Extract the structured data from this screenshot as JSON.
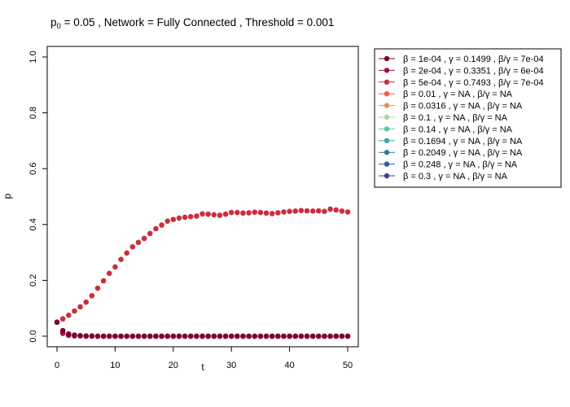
{
  "chart_data": {
    "type": "scatter",
    "title_parts": {
      "p_label": "p",
      "p_sub": "0",
      "p_value": " = 0.05 ,  Network = Fully Connected ,  Threshold = 0.001"
    },
    "xlabel": "t",
    "ylabel": "p",
    "xlim": [
      0,
      50
    ],
    "ylim": [
      0,
      1
    ],
    "x_ticks": [
      0,
      10,
      20,
      30,
      40,
      50
    ],
    "y_ticks": [
      0.0,
      0.2,
      0.4,
      0.6,
      0.8,
      1.0
    ],
    "x_tick_labels": [
      "0",
      "10",
      "20",
      "30",
      "40",
      "50"
    ],
    "y_tick_labels": [
      "0.0",
      "0.2",
      "0.4",
      "0.6",
      "0.8",
      "1.0"
    ],
    "grid": false,
    "legend_position": "outside-right",
    "series": [
      {
        "name": "β = 1e-04 ,  γ = 0.1499 ,  β/γ = 7e-04",
        "color": "#800033",
        "x": [
          0,
          1,
          2,
          3,
          4,
          5,
          6,
          7,
          8,
          9,
          10,
          11,
          12,
          13,
          14,
          15,
          16,
          17,
          18,
          19,
          20,
          21,
          22,
          23,
          24,
          25,
          26,
          27,
          28,
          29,
          30,
          31,
          32,
          33,
          34,
          35,
          36,
          37,
          38,
          39,
          40,
          41,
          42,
          43,
          44,
          45,
          46,
          47,
          48,
          49,
          50
        ],
        "y": [
          0.05,
          0.02,
          0.008,
          0.004,
          0.002,
          0.001,
          0.001,
          0,
          0,
          0,
          0,
          0,
          0,
          0,
          0,
          0,
          0,
          0,
          0,
          0,
          0,
          0,
          0,
          0,
          0,
          0,
          0,
          0,
          0,
          0,
          0,
          0,
          0,
          0,
          0,
          0,
          0,
          0,
          0,
          0,
          0,
          0,
          0,
          0,
          0,
          0,
          0,
          0,
          0,
          0,
          0
        ]
      },
      {
        "name": "β = 2e-04 ,  γ = 0.3351 ,  β/γ = 6e-04",
        "color": "#a0114a",
        "x": [
          0,
          1,
          2,
          3,
          4,
          5,
          6,
          7,
          8,
          9,
          10,
          11,
          12,
          13,
          14,
          15,
          16,
          17,
          18,
          19,
          20,
          21,
          22,
          23,
          24,
          25,
          26,
          27,
          28,
          29,
          30,
          31,
          32,
          33,
          34,
          35,
          36,
          37,
          38,
          39,
          40,
          41,
          42,
          43,
          44,
          45,
          46,
          47,
          48,
          49,
          50
        ],
        "y": [
          0.05,
          0.01,
          0.003,
          0.001,
          0.001,
          0,
          0,
          0,
          0,
          0,
          0,
          0,
          0,
          0,
          0,
          0,
          0,
          0,
          0,
          0,
          0,
          0,
          0,
          0,
          0,
          0,
          0,
          0,
          0,
          0,
          0,
          0,
          0,
          0,
          0,
          0,
          0,
          0,
          0,
          0,
          0,
          0,
          0,
          0,
          0,
          0,
          0,
          0,
          0,
          0,
          0
        ]
      },
      {
        "name": "β = 5e-04 ,  γ = 0.7493 ,  β/γ = 7e-04",
        "color": "#c9303e",
        "x": [
          0,
          1,
          2,
          3,
          4,
          5,
          6,
          7,
          8,
          9,
          10,
          11,
          12,
          13,
          14,
          15,
          16,
          17,
          18,
          19,
          20,
          21,
          22,
          23,
          24,
          25,
          26,
          27,
          28,
          29,
          30,
          31,
          32,
          33,
          34,
          35,
          36,
          37,
          38,
          39,
          40,
          41,
          42,
          43,
          44,
          45,
          46,
          47,
          48,
          49,
          50
        ],
        "y": [
          0.05,
          0.062,
          0.075,
          0.09,
          0.105,
          0.122,
          0.145,
          0.172,
          0.198,
          0.225,
          0.248,
          0.275,
          0.298,
          0.32,
          0.336,
          0.35,
          0.368,
          0.385,
          0.398,
          0.412,
          0.418,
          0.423,
          0.426,
          0.428,
          0.43,
          0.438,
          0.437,
          0.435,
          0.433,
          0.437,
          0.443,
          0.443,
          0.441,
          0.442,
          0.444,
          0.443,
          0.441,
          0.439,
          0.442,
          0.445,
          0.447,
          0.448,
          0.45,
          0.449,
          0.448,
          0.449,
          0.447,
          0.455,
          0.452,
          0.448,
          0.445
        ]
      },
      {
        "name": "β = 0.01 ,  γ = NA ,  β/γ = NA",
        "color": "#e8604c",
        "x": [],
        "y": []
      },
      {
        "name": "β = 0.0316 ,  γ = NA ,  β/γ = NA",
        "color": "#d9925e",
        "x": [],
        "y": []
      },
      {
        "name": "β = 0.1 ,  γ = NA ,  β/γ = NA",
        "color": "#a6dba0",
        "x": [],
        "y": []
      },
      {
        "name": "β = 0.14 ,  γ = NA ,  β/γ = NA",
        "color": "#66c2a5",
        "x": [],
        "y": []
      },
      {
        "name": "β = 0.1694 ,  γ = NA ,  β/γ = NA",
        "color": "#3fa8a0",
        "x": [],
        "y": []
      },
      {
        "name": "β = 0.2049 ,  γ = NA ,  β/γ = NA",
        "color": "#2c7f99",
        "x": [],
        "y": []
      },
      {
        "name": "β = 0.248 ,  γ = NA ,  β/γ = NA",
        "color": "#2f5d9c",
        "x": [],
        "y": []
      },
      {
        "name": "β = 0.3 ,  γ = NA ,  β/γ = NA",
        "color": "#3f3f94",
        "x": [],
        "y": []
      }
    ]
  }
}
